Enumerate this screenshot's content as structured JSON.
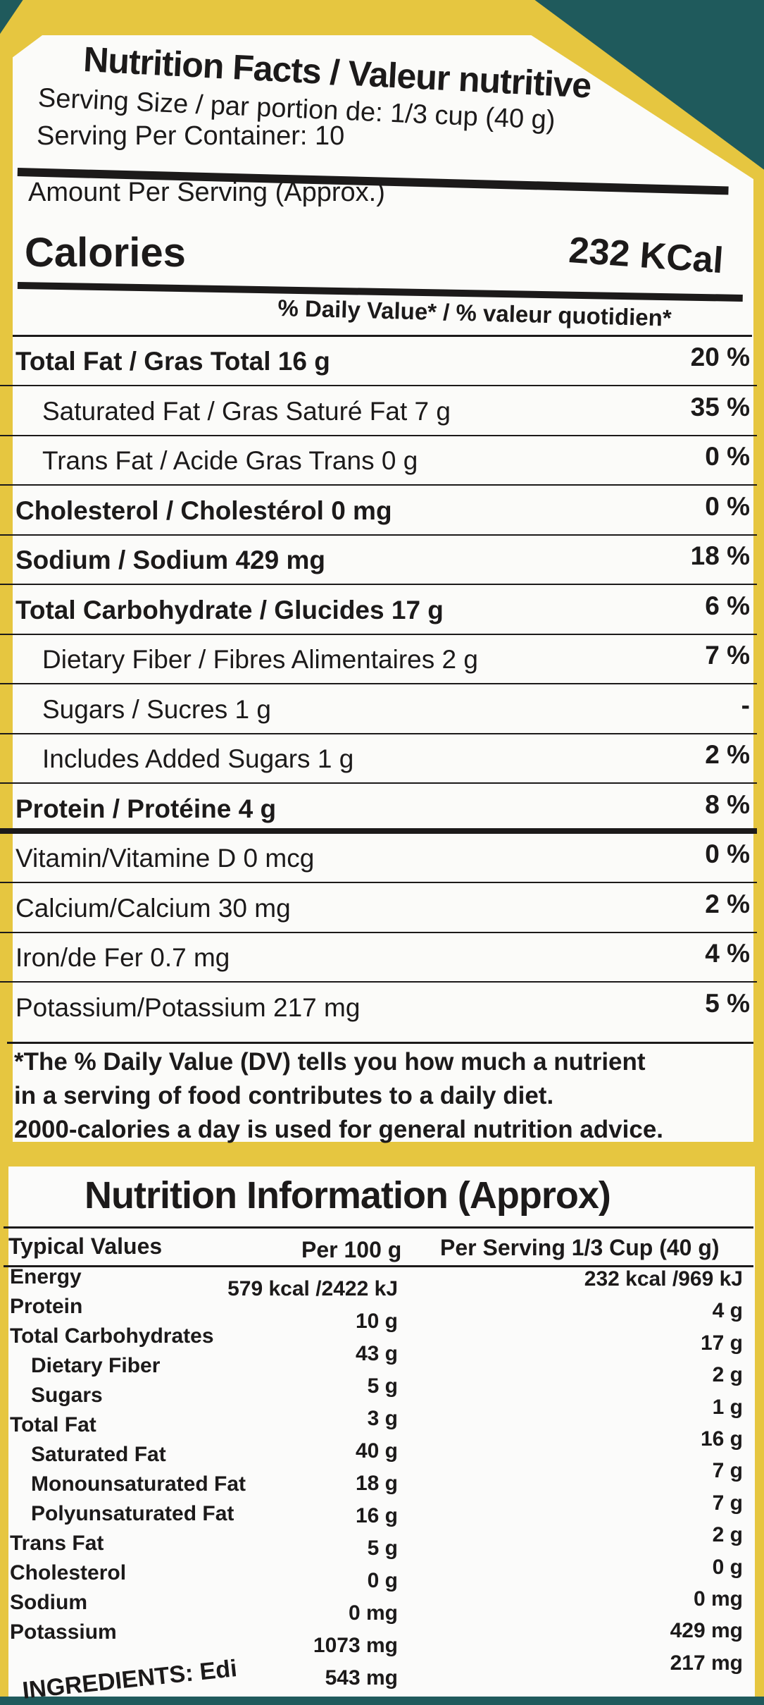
{
  "colors": {
    "border": "#e6c640",
    "background": "#1f5a5c",
    "text": "#1c1a1a"
  },
  "facts": {
    "title": "Nutrition Facts / Valeur nutritive",
    "serving_size": "Serving Size / par portion de: 1/3 cup (40 g)",
    "servings_per_container": "Serving Per Container: 10",
    "amount_per_serving": "Amount Per Serving (Approx.)",
    "calories_label": "Calories",
    "calories_value": "232 KCal",
    "dv_header": "% Daily Value* / % valeur quotidien*",
    "rows": [
      {
        "label": "Total Fat / Gras Total 16 g",
        "dv": "20 %",
        "bold": true,
        "indent": false
      },
      {
        "label": "Saturated Fat / Gras Saturé Fat 7 g",
        "dv": "35 %",
        "bold": false,
        "indent": true
      },
      {
        "label": "Trans Fat / Acide Gras Trans 0 g",
        "dv": "0 %",
        "bold": false,
        "indent": true
      },
      {
        "label": "Cholesterol / Cholestérol 0 mg",
        "dv": "0 %",
        "bold": true,
        "indent": false
      },
      {
        "label": "Sodium / Sodium 429 mg",
        "dv": "18 %",
        "bold": true,
        "indent": false
      },
      {
        "label": "Total Carbohydrate / Glucides 17 g",
        "dv": "6 %",
        "bold": true,
        "indent": false
      },
      {
        "label": "Dietary Fiber / Fibres Alimentaires 2 g",
        "dv": "7 %",
        "bold": false,
        "indent": true
      },
      {
        "label": "Sugars / Sucres 1 g",
        "dv": "-",
        "bold": false,
        "indent": true
      },
      {
        "label": "Includes Added Sugars 1 g",
        "dv": "2 %",
        "bold": false,
        "indent": true
      },
      {
        "label": "Protein / Protéine 4 g",
        "dv": "8 %",
        "bold": true,
        "indent": false
      },
      {
        "label": "Vitamin/Vitamine D 0 mcg",
        "dv": "0 %",
        "bold": false,
        "indent": false
      },
      {
        "label": "Calcium/Calcium 30 mg",
        "dv": "2 %",
        "bold": false,
        "indent": false
      },
      {
        "label": "Iron/de Fer 0.7 mg",
        "dv": "4 %",
        "bold": false,
        "indent": false
      },
      {
        "label": "Potassium/Potassium 217 mg",
        "dv": "5 %",
        "bold": false,
        "indent": false
      }
    ],
    "footnote": [
      "*The % Daily Value (DV) tells you how much a nutrient",
      "in a serving of food contributes to a daily diet.",
      "2000-calories a day is used for general nutrition advice."
    ]
  },
  "info": {
    "title": "Nutrition Information (Approx)",
    "headers": {
      "typical": "Typical Values",
      "per100": "Per 100 g",
      "serving": "Per Serving 1/3 Cup (40 g)"
    },
    "rows": [
      {
        "label": "Energy",
        "per100": "579 kcal /2422 kJ",
        "serving": "232 kcal /969 kJ"
      },
      {
        "label": "Protein",
        "per100": "10 g",
        "serving": "4 g"
      },
      {
        "label": "Total Carbohydrates",
        "per100": "43 g",
        "serving": "17 g"
      },
      {
        "label": "Dietary Fiber",
        "per100": "5 g",
        "serving": "2 g"
      },
      {
        "label": "Sugars",
        "per100": "3 g",
        "serving": "1 g"
      },
      {
        "label": "Total Fat",
        "per100": "40 g",
        "serving": "16 g"
      },
      {
        "label": "Saturated Fat",
        "per100": "18 g",
        "serving": "7 g"
      },
      {
        "label": "Monounsaturated Fat",
        "per100": "16 g",
        "serving": "7 g"
      },
      {
        "label": "Polyunsaturated Fat",
        "per100": "5 g",
        "serving": "2 g"
      },
      {
        "label": "Trans Fat",
        "per100": "0 g",
        "serving": "0 g"
      },
      {
        "label": "Cholesterol",
        "per100": "0 mg",
        "serving": "0 mg"
      },
      {
        "label": "Sodium",
        "per100": "1073 mg",
        "serving": "429 mg"
      },
      {
        "label": "Potassium",
        "per100": "543 mg",
        "serving": "217 mg"
      }
    ],
    "ingredients_label": "INGREDIENTS: Edi"
  }
}
